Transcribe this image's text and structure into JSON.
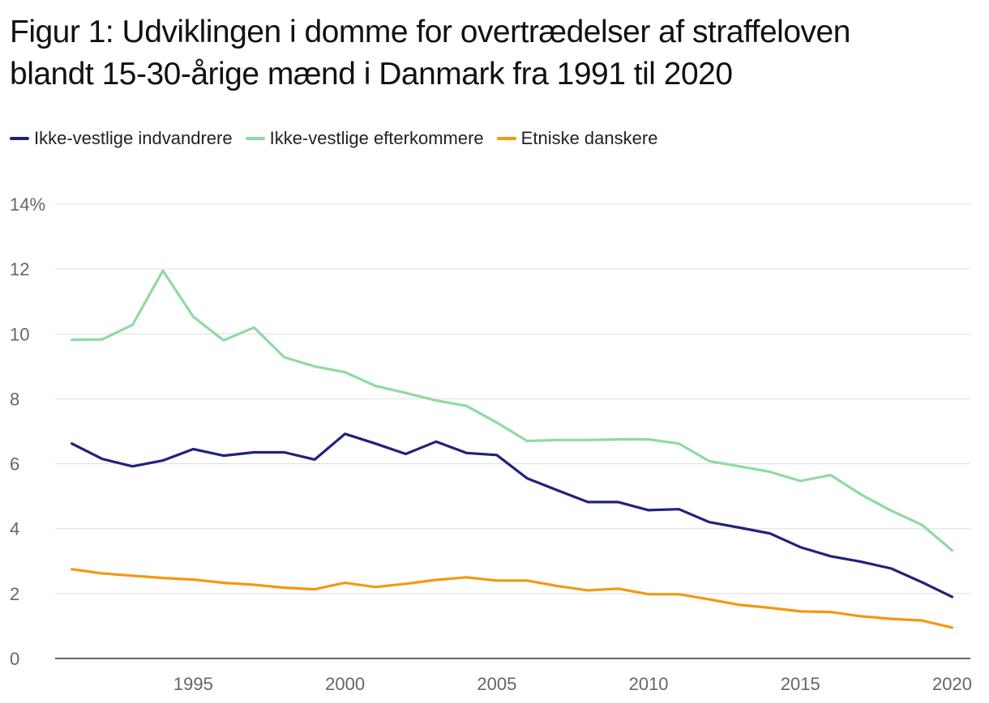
{
  "title_lines": [
    "Figur 1: Udviklingen i domme for overtrædelser af straffeloven",
    "blandt 15-30-årige mænd i Danmark fra 1991 til 2020"
  ],
  "chart_data": {
    "type": "line",
    "title": "Figur 1: Udviklingen i domme for overtrædelser af straffeloven blandt 15-30-årige mænd i Danmark fra 1991 til 2020",
    "xlabel": "",
    "ylabel": "",
    "x": [
      1991,
      1992,
      1993,
      1994,
      1995,
      1996,
      1997,
      1998,
      1999,
      2000,
      2001,
      2002,
      2003,
      2004,
      2005,
      2006,
      2007,
      2008,
      2009,
      2010,
      2011,
      2012,
      2013,
      2014,
      2015,
      2016,
      2017,
      2018,
      2019,
      2020
    ],
    "xlim": [
      1990.45,
      2020.6
    ],
    "ylim": [
      0,
      14
    ],
    "x_ticks": [
      1995,
      2000,
      2005,
      2010,
      2015,
      2020
    ],
    "y_ticks": [
      0,
      2,
      4,
      6,
      8,
      10,
      12,
      14
    ],
    "y_tick_labels": [
      "0",
      "2",
      "4",
      "6",
      "8",
      "10",
      "12",
      "14%"
    ],
    "grid": true,
    "legend_position": "top-left",
    "series": [
      {
        "name": "Ikke-vestlige indvandrere",
        "color": "#1f2378",
        "values": [
          6.62,
          6.15,
          5.92,
          6.1,
          6.45,
          6.25,
          6.35,
          6.35,
          6.13,
          6.92,
          6.62,
          6.3,
          6.68,
          6.33,
          6.27,
          5.55,
          5.18,
          4.82,
          4.82,
          4.57,
          4.6,
          4.2,
          4.03,
          3.85,
          3.43,
          3.15,
          2.98,
          2.77,
          2.35,
          1.9
        ]
      },
      {
        "name": "Ikke-vestlige efterkommere",
        "color": "#8edba3",
        "values": [
          9.82,
          9.83,
          10.28,
          11.95,
          10.53,
          9.8,
          10.2,
          9.28,
          9.0,
          8.82,
          8.4,
          8.18,
          7.95,
          7.78,
          7.27,
          6.7,
          6.73,
          6.73,
          6.75,
          6.75,
          6.62,
          6.08,
          5.92,
          5.75,
          5.47,
          5.65,
          5.05,
          4.55,
          4.12,
          3.33
        ]
      },
      {
        "name": "Etniske danskere",
        "color": "#f5980f",
        "values": [
          2.75,
          2.62,
          2.55,
          2.48,
          2.43,
          2.33,
          2.27,
          2.18,
          2.13,
          2.33,
          2.2,
          2.3,
          2.42,
          2.5,
          2.4,
          2.4,
          2.23,
          2.1,
          2.15,
          1.98,
          1.98,
          1.82,
          1.65,
          1.56,
          1.45,
          1.43,
          1.3,
          1.22,
          1.17,
          0.95
        ]
      }
    ]
  }
}
